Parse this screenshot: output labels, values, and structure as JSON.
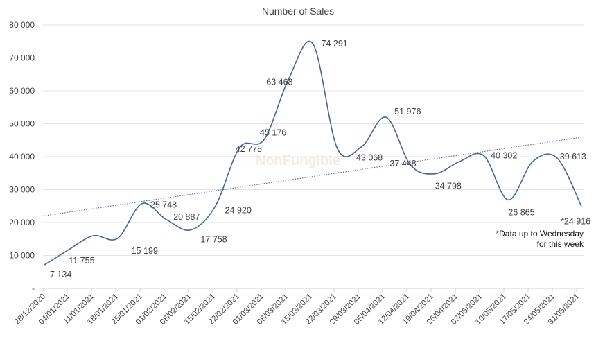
{
  "chart_data": {
    "type": "line",
    "title": "Number  of Sales",
    "categories": [
      "28/12/2020",
      "04/01/2021",
      "11/01/2021",
      "18/01/2021",
      "25/01/2021",
      "01/02/2021",
      "08/02/2021",
      "15/02/2021",
      "22/02/2021",
      "01/03/2021",
      "08/03/2021",
      "15/03/2021",
      "22/03/2021",
      "29/03/2021",
      "05/04/2021",
      "12/04/2021",
      "19/04/2021",
      "26/04/2021",
      "03/05/2021",
      "10/05/2021",
      "17/05/2021",
      "24/05/2021",
      "31/05/2021"
    ],
    "values": [
      7134,
      11755,
      16000,
      15199,
      25748,
      20887,
      17758,
      24920,
      42778,
      45176,
      63468,
      74291,
      42500,
      43068,
      51976,
      37448,
      34798,
      38500,
      40302,
      26865,
      38500,
      39613,
      24916
    ],
    "data_labels": [
      "7 134",
      "11 755",
      null,
      "15 199",
      "25 748",
      "20 887",
      "17 758",
      "24 920",
      "42 778",
      "45 176",
      "63 468",
      "74 291",
      null,
      "43 068",
      "51 976",
      "37 448",
      "34 798",
      null,
      "40 302",
      "26 865",
      null,
      "39 613",
      "*24 916"
    ],
    "trendline": {
      "type": "linear",
      "start": 22000,
      "end": 46000
    },
    "yticks": [
      0,
      10000,
      20000,
      30000,
      40000,
      50000,
      60000,
      70000,
      80000
    ],
    "ytick_labels": [
      "-",
      "10 000",
      "20 000",
      "30 000",
      "40 000",
      "50 000",
      "60 000",
      "70 000",
      "80 000"
    ],
    "ylim": [
      0,
      80000
    ],
    "grid": true,
    "line_color": "#4a6395",
    "trend_color": "#6a6aa0",
    "annotation": [
      "*Data up to Wednesday",
      "for this week"
    ],
    "watermark": "NonFungible"
  }
}
